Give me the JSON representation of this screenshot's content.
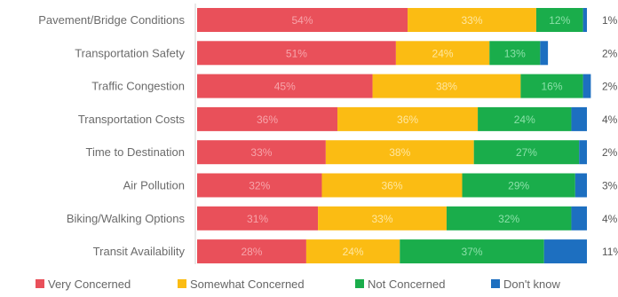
{
  "chart_data": {
    "type": "bar",
    "orientation": "horizontal",
    "stacked": true,
    "title": "",
    "xlabel": "",
    "ylabel": "",
    "xlim": [
      0,
      100
    ],
    "grid": false,
    "legend_position": "bottom",
    "categories": [
      "Pavement/Bridge Conditions",
      "Transportation Safety",
      "Traffic Congestion",
      "Transportation Costs",
      "Time to Destination",
      "Air Pollution",
      "Biking/Walking Options",
      "Transit Availability"
    ],
    "series": [
      {
        "name": "Very Concerned",
        "color": "#e9505a",
        "label_color": "#f7a4aa",
        "values": [
          54,
          51,
          45,
          36,
          33,
          32,
          31,
          28
        ]
      },
      {
        "name": "Somewhat Concerned",
        "color": "#fbbc13",
        "label_color": "#ffe7a0",
        "values": [
          33,
          24,
          38,
          36,
          38,
          36,
          33,
          24
        ]
      },
      {
        "name": "Not Concerned",
        "color": "#1aad4b",
        "label_color": "#8be0a8",
        "values": [
          12,
          13,
          16,
          24,
          27,
          29,
          32,
          37
        ]
      },
      {
        "name": "Don't know",
        "color": "#1d6fc0",
        "label_color": "#ffffff",
        "values": [
          1,
          2,
          2,
          4,
          2,
          3,
          4,
          11
        ]
      }
    ]
  }
}
